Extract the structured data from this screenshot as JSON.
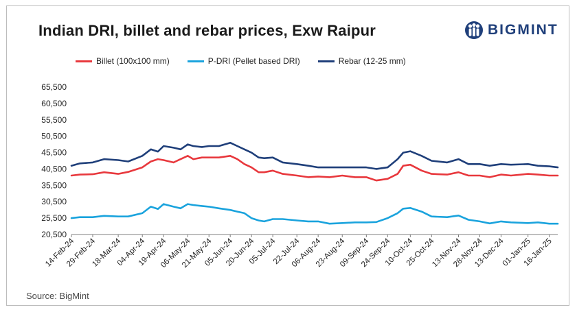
{
  "header": {
    "title": "Indian DRI, billet and rebar prices, Exw Raipur",
    "logo_text": "BIGMINT"
  },
  "footer": {
    "source": "Source: BigMint"
  },
  "colors": {
    "billet": "#e8383d",
    "pdri": "#1aa3dd",
    "rebar": "#1f3f7a"
  },
  "chart_data": {
    "type": "line",
    "title": "Indian DRI, billet and rebar prices, Exw Raipur",
    "xlabel": "",
    "ylabel": "",
    "ylim": [
      20500,
      65500
    ],
    "yticks": [
      "65,500",
      "60,500",
      "55,500",
      "50,500",
      "45,500",
      "40,500",
      "35,500",
      "30,500",
      "25,500",
      "20,500"
    ],
    "ytick_values": [
      65500,
      60500,
      55500,
      50500,
      45500,
      40500,
      35500,
      30500,
      25500,
      20500
    ],
    "x_start": "2024-02-14",
    "x_end": "2025-01-22",
    "xticks": [
      "14-Feb-24",
      "29-Feb-24",
      "18-Mar-24",
      "04-Apr-24",
      "19-Apr-24",
      "06-May-24",
      "21-May-24",
      "05-Jun-24",
      "20-Jun-24",
      "05-Jul-24",
      "22-Jul-24",
      "06-Aug-24",
      "23-Aug-24",
      "09-Sep-24",
      "24-Sep-24",
      "10-Oct-24",
      "25-Oct-24",
      "13-Nov-24",
      "28-Nov-24",
      "13-Dec-24",
      "01-Jan-25",
      "16-Jan-25"
    ],
    "xtick_dates": [
      "2024-02-14",
      "2024-02-29",
      "2024-03-18",
      "2024-04-04",
      "2024-04-19",
      "2024-05-06",
      "2024-05-21",
      "2024-06-05",
      "2024-06-20",
      "2024-07-05",
      "2024-07-22",
      "2024-08-06",
      "2024-08-23",
      "2024-09-09",
      "2024-09-24",
      "2024-10-10",
      "2024-10-25",
      "2024-11-13",
      "2024-11-28",
      "2024-12-13",
      "2025-01-01",
      "2025-01-16"
    ],
    "legend_position": "top",
    "grid": false,
    "series": [
      {
        "name": "Billet (100x100 mm)",
        "color": "#e8383d",
        "x": [
          "2024-02-14",
          "2024-02-20",
          "2024-02-29",
          "2024-03-08",
          "2024-03-18",
          "2024-03-25",
          "2024-04-04",
          "2024-04-10",
          "2024-04-15",
          "2024-04-19",
          "2024-04-26",
          "2024-05-01",
          "2024-05-06",
          "2024-05-10",
          "2024-05-16",
          "2024-05-21",
          "2024-05-28",
          "2024-06-05",
          "2024-06-10",
          "2024-06-15",
          "2024-06-20",
          "2024-06-25",
          "2024-06-29",
          "2024-07-05",
          "2024-07-12",
          "2024-07-22",
          "2024-07-30",
          "2024-08-06",
          "2024-08-14",
          "2024-08-23",
          "2024-09-01",
          "2024-09-09",
          "2024-09-16",
          "2024-09-24",
          "2024-10-01",
          "2024-10-05",
          "2024-10-10",
          "2024-10-18",
          "2024-10-25",
          "2024-11-05",
          "2024-11-13",
          "2024-11-20",
          "2024-11-28",
          "2024-12-05",
          "2024-12-13",
          "2024-12-20",
          "2025-01-01",
          "2025-01-08",
          "2025-01-16",
          "2025-01-22"
        ],
        "y": [
          38500,
          38800,
          38900,
          39500,
          39000,
          39600,
          41000,
          42800,
          43500,
          43200,
          42500,
          43500,
          44500,
          43500,
          44000,
          44000,
          44000,
          44500,
          43500,
          42000,
          41000,
          39500,
          39500,
          40000,
          39000,
          38500,
          38000,
          38200,
          38000,
          38500,
          38000,
          38000,
          37000,
          37500,
          39000,
          41500,
          41800,
          40000,
          39000,
          38800,
          39500,
          38500,
          38500,
          38000,
          38800,
          38500,
          39000,
          38800,
          38500,
          38500
        ]
      },
      {
        "name": "P-DRI (Pellet based DRI)",
        "color": "#1aa3dd",
        "x": [
          "2024-02-14",
          "2024-02-20",
          "2024-02-29",
          "2024-03-08",
          "2024-03-18",
          "2024-03-25",
          "2024-04-04",
          "2024-04-10",
          "2024-04-15",
          "2024-04-19",
          "2024-04-26",
          "2024-05-01",
          "2024-05-06",
          "2024-05-10",
          "2024-05-16",
          "2024-05-21",
          "2024-05-28",
          "2024-06-05",
          "2024-06-10",
          "2024-06-15",
          "2024-06-20",
          "2024-06-25",
          "2024-06-29",
          "2024-07-05",
          "2024-07-12",
          "2024-07-22",
          "2024-07-30",
          "2024-08-06",
          "2024-08-14",
          "2024-08-23",
          "2024-09-01",
          "2024-09-09",
          "2024-09-16",
          "2024-09-24",
          "2024-10-01",
          "2024-10-05",
          "2024-10-10",
          "2024-10-18",
          "2024-10-25",
          "2024-11-05",
          "2024-11-13",
          "2024-11-20",
          "2024-11-28",
          "2024-12-05",
          "2024-12-13",
          "2024-12-20",
          "2025-01-01",
          "2025-01-08",
          "2025-01-16",
          "2025-01-22"
        ],
        "y": [
          25500,
          25800,
          25800,
          26200,
          26000,
          26000,
          27000,
          29000,
          28300,
          29800,
          29000,
          28500,
          29800,
          29500,
          29200,
          29000,
          28500,
          28000,
          27500,
          27000,
          25500,
          24800,
          24500,
          25200,
          25200,
          24800,
          24500,
          24500,
          23800,
          24000,
          24200,
          24200,
          24300,
          25500,
          27000,
          28400,
          28600,
          27500,
          26000,
          25800,
          26300,
          25000,
          24500,
          23900,
          24500,
          24200,
          24000,
          24200,
          23800,
          23800
        ]
      },
      {
        "name": "Rebar (12-25 mm)",
        "color": "#1f3f7a",
        "x": [
          "2024-02-14",
          "2024-02-20",
          "2024-02-29",
          "2024-03-08",
          "2024-03-18",
          "2024-03-25",
          "2024-04-04",
          "2024-04-10",
          "2024-04-15",
          "2024-04-19",
          "2024-04-26",
          "2024-05-01",
          "2024-05-06",
          "2024-05-10",
          "2024-05-16",
          "2024-05-21",
          "2024-05-28",
          "2024-06-05",
          "2024-06-10",
          "2024-06-15",
          "2024-06-20",
          "2024-06-25",
          "2024-06-29",
          "2024-07-05",
          "2024-07-12",
          "2024-07-22",
          "2024-07-30",
          "2024-08-06",
          "2024-08-14",
          "2024-08-23",
          "2024-09-01",
          "2024-09-09",
          "2024-09-16",
          "2024-09-24",
          "2024-10-01",
          "2024-10-05",
          "2024-10-10",
          "2024-10-18",
          "2024-10-25",
          "2024-11-05",
          "2024-11-13",
          "2024-11-20",
          "2024-11-28",
          "2024-12-05",
          "2024-12-13",
          "2024-12-20",
          "2025-01-01",
          "2025-01-08",
          "2025-01-16",
          "2025-01-22"
        ],
        "y": [
          41500,
          42200,
          42500,
          43500,
          43200,
          42800,
          44500,
          46500,
          45800,
          47500,
          47000,
          46500,
          48000,
          47500,
          47200,
          47500,
          47500,
          48500,
          47500,
          46500,
          45500,
          44000,
          43800,
          44000,
          42500,
          42000,
          41500,
          41000,
          41000,
          41000,
          41000,
          41000,
          40500,
          41000,
          43500,
          45500,
          45900,
          44500,
          43000,
          42500,
          43500,
          42000,
          42000,
          41500,
          42000,
          41800,
          42000,
          41500,
          41300,
          41000
        ]
      }
    ]
  }
}
